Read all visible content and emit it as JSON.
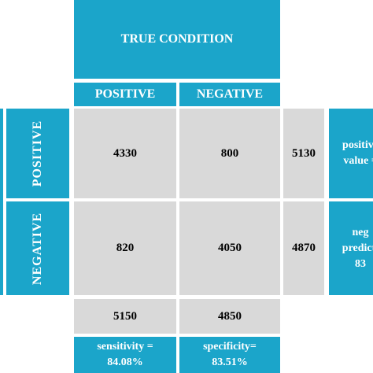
{
  "header": {
    "title": "TRUE CONDITION",
    "columns": [
      "POSITIVE",
      "NEGATIVE"
    ]
  },
  "rows": [
    {
      "label": "POSITIVE",
      "cells": [
        4330,
        800
      ],
      "total": 5130,
      "metric": [
        "positive",
        "value ="
      ]
    },
    {
      "label": "NEGATIVE",
      "cells": [
        820,
        4050
      ],
      "total": 4870,
      "metric": [
        "neg",
        "predicti",
        "83"
      ]
    }
  ],
  "column_totals": [
    5150,
    4850
  ],
  "column_metrics": [
    [
      "sensitivity =",
      "84.08%"
    ],
    [
      "specificity=",
      "83.51%"
    ]
  ]
}
